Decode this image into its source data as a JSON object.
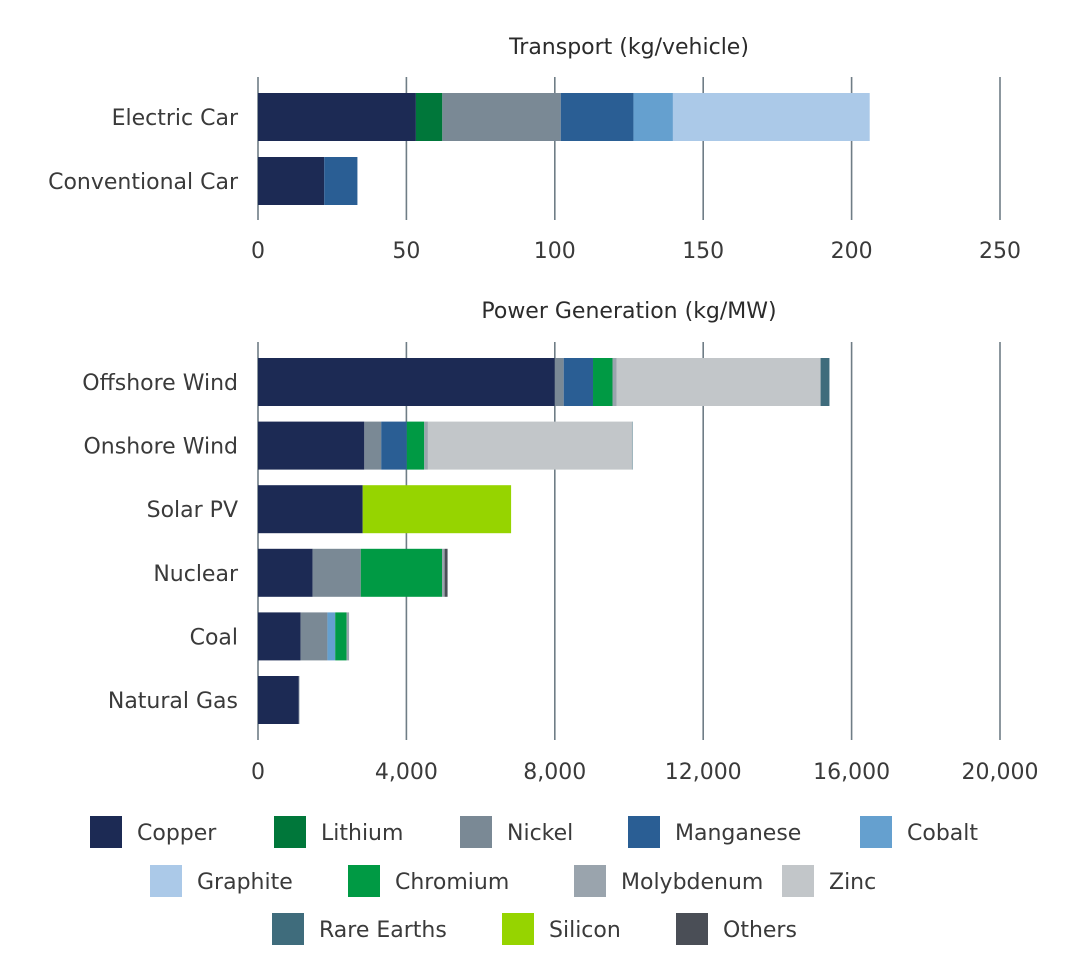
{
  "colors": {
    "Copper": "#1c2a54",
    "Lithium": "#00773a",
    "Nickel": "#7a8995",
    "Manganese": "#2a5e94",
    "Cobalt": "#65a0cf",
    "Graphite": "#abc9e8",
    "Chromium": "#009a44",
    "Molybdenum": "#9aa4ad",
    "Zinc": "#c2c6c9",
    "Rare Earths": "#3f6c7c",
    "Silicon": "#96d400",
    "Others": "#4a4e56"
  },
  "legend": [
    [
      "Copper",
      "Lithium",
      "Nickel",
      "Manganese",
      "Cobalt"
    ],
    [
      "Graphite",
      "Chromium",
      "Molybdenum",
      "Zinc"
    ],
    [
      "Rare Earths",
      "Silicon",
      "Others"
    ]
  ],
  "chart_data": [
    {
      "type": "bar",
      "orientation": "horizontal",
      "stacked": true,
      "title": "Transport (kg/vehicle)",
      "categories": [
        "Electric Car",
        "Conventional Car"
      ],
      "xlim": [
        0,
        250
      ],
      "ticks": [
        0,
        50,
        100,
        150,
        200,
        250
      ],
      "tick_labels": [
        "0",
        "50",
        "100",
        "150",
        "200",
        "250"
      ],
      "grid": true,
      "series": [
        {
          "name": "Copper",
          "values": [
            53.2,
            22.3
          ]
        },
        {
          "name": "Lithium",
          "values": [
            8.9,
            0
          ]
        },
        {
          "name": "Nickel",
          "values": [
            39.9,
            0
          ]
        },
        {
          "name": "Manganese",
          "values": [
            24.5,
            11.2
          ]
        },
        {
          "name": "Cobalt",
          "values": [
            13.3,
            0
          ]
        },
        {
          "name": "Graphite",
          "values": [
            66.3,
            0
          ]
        }
      ]
    },
    {
      "type": "bar",
      "orientation": "horizontal",
      "stacked": true,
      "title": "Power Generation (kg/MW)",
      "categories": [
        "Offshore Wind",
        "Onshore Wind",
        "Solar PV",
        "Nuclear",
        "Coal",
        "Natural Gas"
      ],
      "xlim": [
        0,
        20000
      ],
      "ticks": [
        0,
        4000,
        8000,
        12000,
        16000,
        20000
      ],
      "tick_labels": [
        "0",
        "4,000",
        "8,000",
        "12,000",
        "16,000",
        "20,000"
      ],
      "grid": true,
      "series": [
        {
          "name": "Copper",
          "values": [
            8000,
            2866,
            2822,
            1473,
            1150,
            1100
          ]
        },
        {
          "name": "Nickel",
          "values": [
            240,
            455,
            0,
            1297,
            721,
            16
          ]
        },
        {
          "name": "Manganese",
          "values": [
            790,
            690,
            0,
            0,
            0,
            0
          ]
        },
        {
          "name": "Cobalt",
          "values": [
            0,
            0,
            0,
            0,
            210,
            0
          ]
        },
        {
          "name": "Chromium",
          "values": [
            525,
            470,
            0,
            2190,
            308,
            0
          ]
        },
        {
          "name": "Molybdenum",
          "values": [
            109,
            99,
            0,
            70,
            66,
            0
          ]
        },
        {
          "name": "Zinc",
          "values": [
            5500,
            5500,
            0,
            0,
            0,
            0
          ]
        },
        {
          "name": "Rare Earths",
          "values": [
            239,
            14,
            0,
            0,
            0,
            0
          ]
        },
        {
          "name": "Silicon",
          "values": [
            0,
            0,
            4000,
            0,
            0,
            0
          ]
        },
        {
          "name": "Others",
          "values": [
            0,
            0,
            0,
            80,
            0,
            0
          ]
        }
      ]
    }
  ]
}
